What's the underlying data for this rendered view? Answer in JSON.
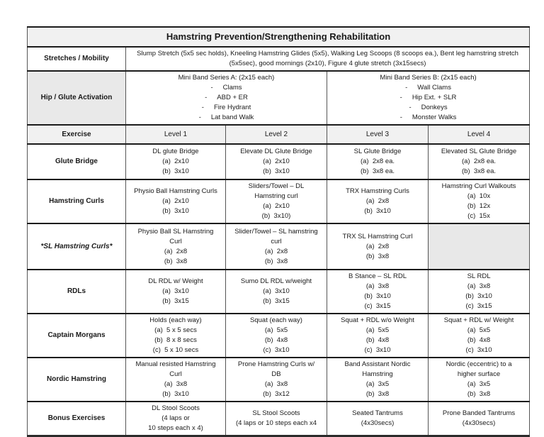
{
  "title": "Hamstring Prevention/Strengthening Rehabilitation",
  "colors": {
    "title_bg": "#f1f1f1",
    "header_row_bg": "#f1f1f1",
    "activation_label_bg": "#e9e9e9",
    "empty_cell_bg": "#e8e8e8",
    "row_border": "#1c1c1c",
    "column_border": "#555555"
  },
  "stretches": {
    "label": "Stretches / Mobility",
    "content": "Slump Stretch (5x5 sec holds), Kneeling Hamstring Glides (5x5), Walking Leg Scoops (8 scoops ea.), Bent leg hamstring stretch (5x5sec), good mornings (2x10), Figure 4 glute stretch (3x15secs)"
  },
  "activation": {
    "label": "Hip / Glute Activation",
    "series_a": {
      "title": "Mini Band Series A: (2x15 each)",
      "items": [
        "Clams",
        "ABD + ER",
        "Fire Hydrant",
        "Lat band Walk"
      ]
    },
    "series_b": {
      "title": "Mini Band Series B: (2x15 each)",
      "items": [
        "Wall Clams",
        "Hip Ext. + SLR",
        "Donkeys",
        "Monster Walks"
      ]
    }
  },
  "header": {
    "exercise": "Exercise",
    "levels": [
      "Level 1",
      "Level 2",
      "Level 3",
      "Level 4"
    ]
  },
  "rows": [
    {
      "exercise": "Glute Bridge",
      "italic": false,
      "cells": [
        {
          "lines": [
            "DL glute Bridge",
            "(a)  2x10",
            "(b)  3x10"
          ]
        },
        {
          "lines": [
            "Elevate DL Glute Bridge",
            "(a)  2x10",
            "(b)  3x10"
          ]
        },
        {
          "lines": [
            "SL Glute Bridge",
            "(a)  2x8 ea.",
            "(b)  3x8 ea."
          ]
        },
        {
          "lines": [
            "Elevated SL Glute Bridge",
            "(a)  2x8 ea.",
            "(b)  3x8 ea."
          ]
        }
      ]
    },
    {
      "exercise": "Hamstring Curls",
      "italic": false,
      "cells": [
        {
          "lines": [
            "Physio Ball Hamstring Curls",
            "(a)  2x10",
            "(b)  3x10"
          ]
        },
        {
          "lines": [
            "Sliders/Towel – DL",
            "Hamstring curl",
            "(a)  2x10",
            "(b)  3x10)"
          ]
        },
        {
          "lines": [
            "TRX Hamstring Curls",
            "(a)  2x8",
            "(b)  3x10"
          ]
        },
        {
          "lines": [
            "Hamstring Curl Walkouts",
            "(a)  10x",
            "(b)  12x",
            "(c)  15x"
          ]
        }
      ]
    },
    {
      "exercise": "*SL Hamstring Curls*",
      "italic": true,
      "cells": [
        {
          "lines": [
            "Physio Ball SL Hamstring",
            "Curl",
            "(a)  2x8",
            "(b)  3x8"
          ]
        },
        {
          "lines": [
            "Slider/Towel – SL hamstring",
            "curl",
            "(a)  2x8",
            "(b)  3x8"
          ]
        },
        {
          "lines": [
            "TRX SL Hamstring Curl",
            "(a)  2x8",
            "(b)  3x8"
          ]
        },
        {
          "lines": [],
          "shaded": true
        }
      ]
    },
    {
      "exercise": "RDLs",
      "italic": false,
      "cells": [
        {
          "lines": [
            "DL RDL w/ Weight",
            "(a)  3x10",
            "(b)  3x15"
          ]
        },
        {
          "lines": [
            "Sumo DL RDL w/weight",
            "(a)  3x10",
            "(b)  3x15"
          ]
        },
        {
          "lines": [
            "B Stance – SL RDL",
            "(a)  3x8",
            "(b)  3x10",
            "(c)  3x15"
          ]
        },
        {
          "lines": [
            "SL RDL",
            "(a)  3x8",
            "(b)  3x10",
            "(c)  3x15"
          ]
        }
      ]
    },
    {
      "exercise": "Captain Morgans",
      "italic": false,
      "cells": [
        {
          "lines": [
            "Holds (each way)",
            "(a)  5 x 5 secs",
            "(b)  8 x 8 secs",
            "(c)  5 x 10 secs"
          ]
        },
        {
          "lines": [
            "Squat (each way)",
            "(a)  5x5",
            "(b)  4x8",
            "(c)  3x10"
          ]
        },
        {
          "lines": [
            "Squat + RDL w/o Weight",
            "(a)  5x5",
            "(b)  4x8",
            "(c)  3x10"
          ]
        },
        {
          "lines": [
            "Squat + RDL w/ Weight",
            "(a)  5x5",
            "(b)  4x8",
            "(c)  3x10"
          ]
        }
      ]
    },
    {
      "exercise": "Nordic Hamstring",
      "italic": false,
      "cells": [
        {
          "lines": [
            "Manual resisted Hamstring",
            "Curl",
            "(a)  3x8",
            "(b)  3x10"
          ]
        },
        {
          "lines": [
            "Prone Hamstring Curls w/",
            "DB",
            "(a)  3x8",
            "(b)  3x12"
          ]
        },
        {
          "lines": [
            "Band Assistant Nordic",
            "Hamstring",
            "(a)  3x5",
            "(b)  3x8"
          ]
        },
        {
          "lines": [
            "Nordic (eccentric) to a",
            "higher surface",
            "(a)  3x5",
            "(b)  3x8"
          ]
        }
      ]
    },
    {
      "exercise": "Bonus Exercises",
      "italic": false,
      "cells": [
        {
          "lines": [
            "DL Stool Scoots",
            "(4 laps or",
            "10 steps each x 4)"
          ]
        },
        {
          "lines": [
            "SL Stool Scoots",
            "(4 laps or 10 steps each x4"
          ]
        },
        {
          "lines": [
            "Seated Tantrums",
            "(4x30secs)"
          ]
        },
        {
          "lines": [
            "Prone Banded Tantrums",
            "(4x30secs)"
          ]
        }
      ]
    }
  ]
}
